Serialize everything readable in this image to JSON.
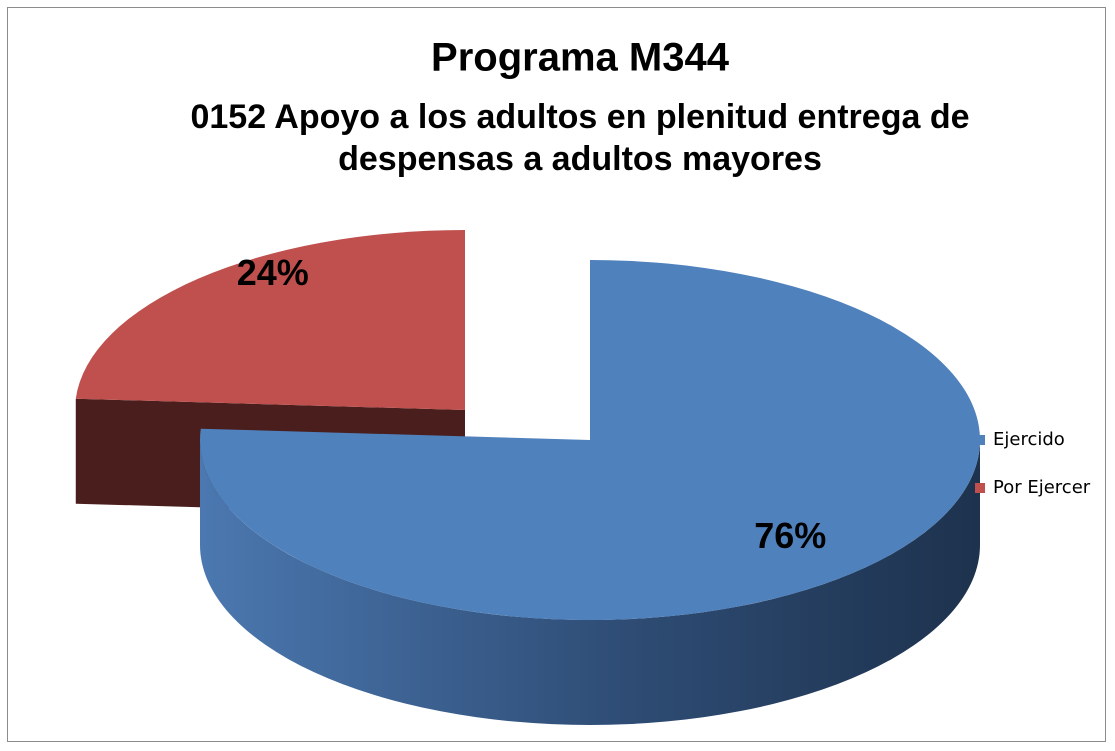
{
  "chart_data": {
    "type": "pie",
    "title": "Programa M344",
    "subtitle": "0152 Apoyo a los adultos en plenitud entrega de despensas a adultos mayores",
    "categories": [
      "Ejercido",
      "Por Ejercer"
    ],
    "values": [
      76,
      24
    ],
    "value_labels": [
      "76%",
      "24%"
    ],
    "colors": [
      "#4f81bd",
      "#c0504d"
    ],
    "exploded": [
      false,
      true
    ],
    "legend": "right"
  }
}
